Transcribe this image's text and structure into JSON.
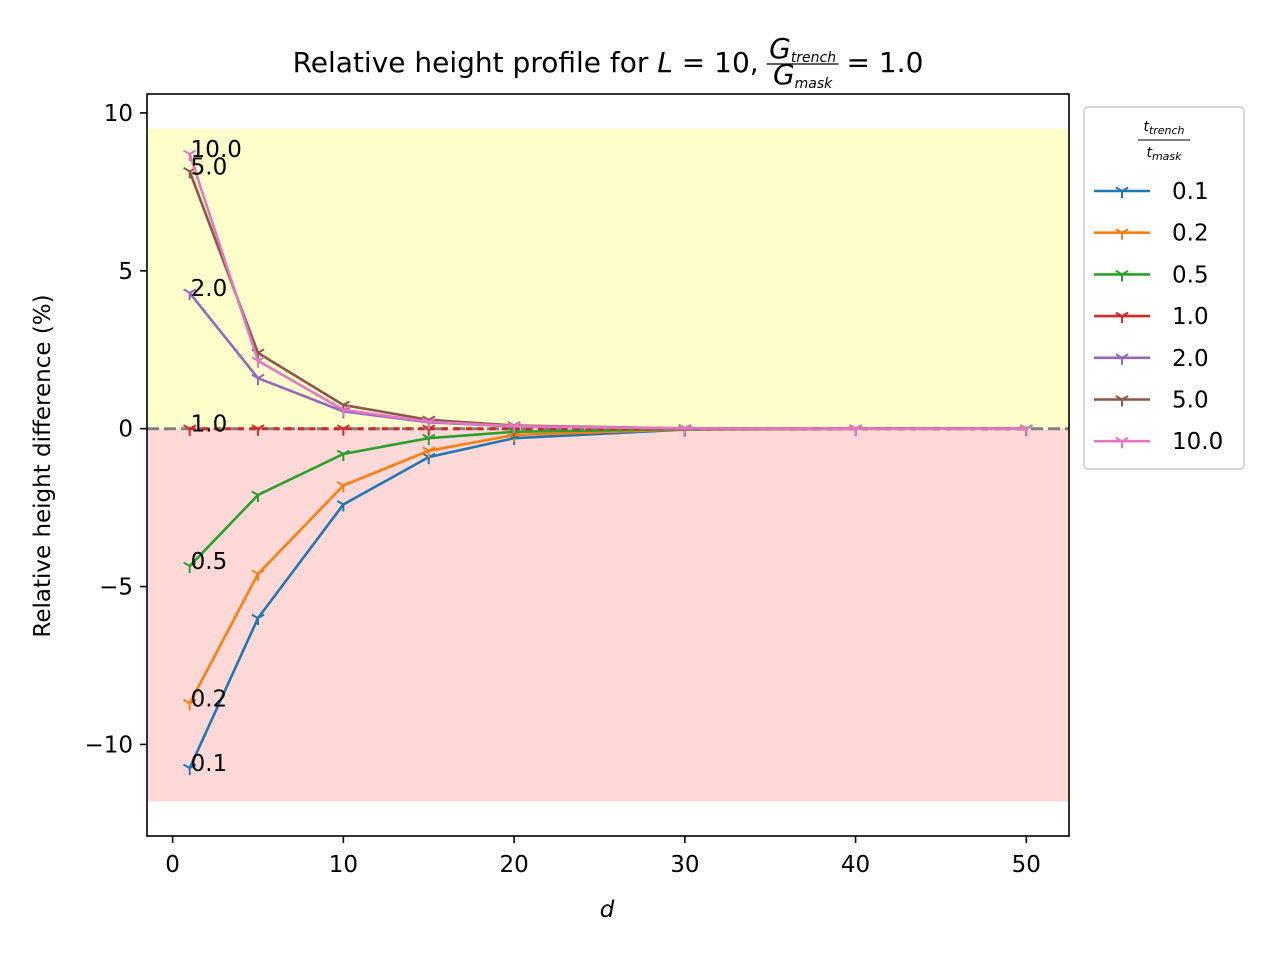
{
  "chart_data": {
    "type": "line",
    "title": {
      "prefix": "Relative height profile for ",
      "var": "L",
      "eq": " = 10, ",
      "frac_num_base": "G",
      "frac_num_sub": "trench",
      "frac_den_base": "G",
      "frac_den_sub": "mask",
      "suffix": " = 1.0"
    },
    "xlabel": "d",
    "ylabel": "Relative height difference (%)",
    "xlim": [
      -1.5,
      52.5
    ],
    "ylim": [
      -12.9,
      10.6
    ],
    "xticks": [
      0,
      10,
      20,
      30,
      40,
      50
    ],
    "yticks": [
      -10,
      -5,
      0,
      5,
      10
    ],
    "x": [
      1,
      5,
      10,
      15,
      20,
      30,
      40,
      50
    ],
    "shaded_regions": [
      {
        "y0": 0,
        "y1": 9.5,
        "color": "#ffffcc"
      },
      {
        "y0": -11.8,
        "y1": 0,
        "color": "#ffd8d8"
      }
    ],
    "zero_line": {
      "color": "#808080",
      "style": "dashed"
    },
    "legend": {
      "title_num_base": "t",
      "title_num_sub": "trench",
      "title_den_base": "t",
      "title_den_sub": "mask",
      "position": "outside-right-top"
    },
    "series": [
      {
        "name": "0.1",
        "color": "#1f77b4",
        "marker": "1",
        "values": [
          -10.75,
          -6.0,
          -2.4,
          -0.9,
          -0.3,
          -0.03,
          0.0,
          0.0
        ]
      },
      {
        "name": "0.2",
        "color": "#ff7f0e",
        "marker": "1",
        "values": [
          -8.7,
          -4.6,
          -1.8,
          -0.7,
          -0.2,
          -0.02,
          0.0,
          0.0
        ]
      },
      {
        "name": "0.5",
        "color": "#2ca02c",
        "marker": "1",
        "values": [
          -4.35,
          -2.1,
          -0.8,
          -0.3,
          -0.1,
          -0.01,
          0.0,
          0.0
        ]
      },
      {
        "name": "1.0",
        "color": "#d62728",
        "marker": "1",
        "values": [
          0.0,
          0.0,
          0.0,
          0.0,
          0.0,
          0.0,
          0.0,
          0.0
        ]
      },
      {
        "name": "2.0",
        "color": "#9467bd",
        "marker": "1",
        "values": [
          4.3,
          1.6,
          0.55,
          0.2,
          0.07,
          0.01,
          0.0,
          0.0
        ]
      },
      {
        "name": "5.0",
        "color": "#8c564b",
        "marker": "1",
        "values": [
          8.15,
          2.4,
          0.75,
          0.28,
          0.1,
          0.01,
          0.0,
          0.0
        ]
      },
      {
        "name": "10.0",
        "color": "#e377c2",
        "marker": "1",
        "values": [
          8.7,
          2.15,
          0.6,
          0.22,
          0.08,
          0.01,
          0.0,
          0.0
        ]
      }
    ],
    "annotations": [
      {
        "text": "10.0",
        "x": 1,
        "y": 8.7
      },
      {
        "text": "5.0",
        "x": 1,
        "y": 8.15
      },
      {
        "text": "2.0",
        "x": 1,
        "y": 4.3
      },
      {
        "text": "1.0",
        "x": 1,
        "y": 0.0
      },
      {
        "text": "0.5",
        "x": 1,
        "y": -4.35
      },
      {
        "text": "0.2",
        "x": 1,
        "y": -8.7
      },
      {
        "text": "0.1",
        "x": 1,
        "y": -10.75
      }
    ]
  }
}
